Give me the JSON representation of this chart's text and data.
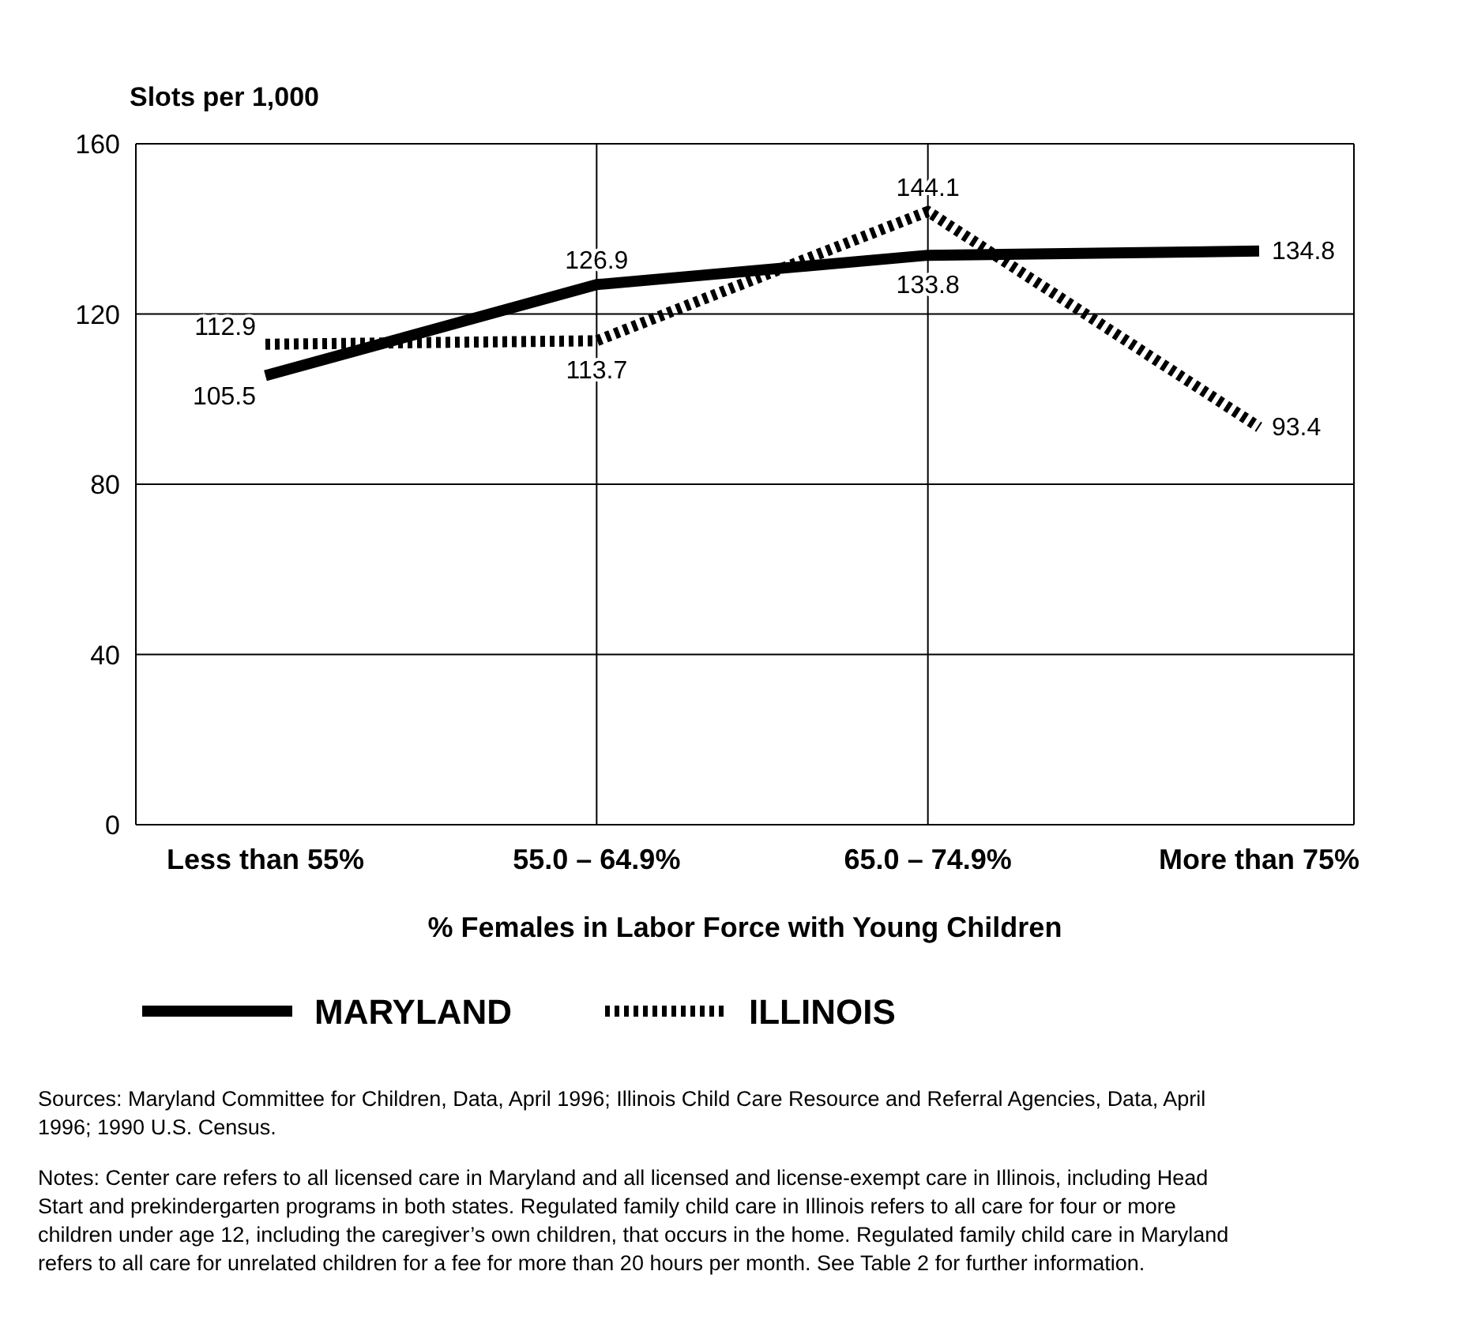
{
  "chart_data": {
    "type": "line",
    "ylabel": "Slots per 1,000",
    "xlabel": "% Females in Labor Force with Young Children",
    "categories": [
      "Less than 55%",
      "55.0 – 64.9%",
      "65.0 – 74.9%",
      "More than 75%"
    ],
    "series": [
      {
        "name": "MARYLAND",
        "color": "#000000",
        "line_style": "solid",
        "values": [
          105.5,
          126.9,
          133.8,
          134.8
        ]
      },
      {
        "name": "ILLINOIS",
        "color": "#000000",
        "line_style": "dotted",
        "values": [
          112.9,
          113.7,
          144.1,
          93.4
        ]
      }
    ],
    "ylim": [
      0,
      160
    ],
    "yticks": [
      0,
      40,
      80,
      120,
      160
    ],
    "grid": true,
    "legend": "bottom",
    "marker": "none",
    "data_labels": true,
    "annotations": [
      "Sources: Maryland Committee for Children, Data, April 1996; Illinois Child Care Resource and Referral Agencies, Data, April 1996; 1990 U.S. Census.",
      "Notes: Center care refers to all licensed care in Maryland and all licensed and license-exempt care in Illinois, including Head Start and prekindergarten programs in both states. Regulated family child care in Illinois refers to all care for four or more children under age 12, including the caregiver’s own children, that occurs in the home. Regulated family child care in Maryland refers to all care for unrelated children for a fee for more than 20 hours per month. See Table 2 for further information."
    ]
  }
}
